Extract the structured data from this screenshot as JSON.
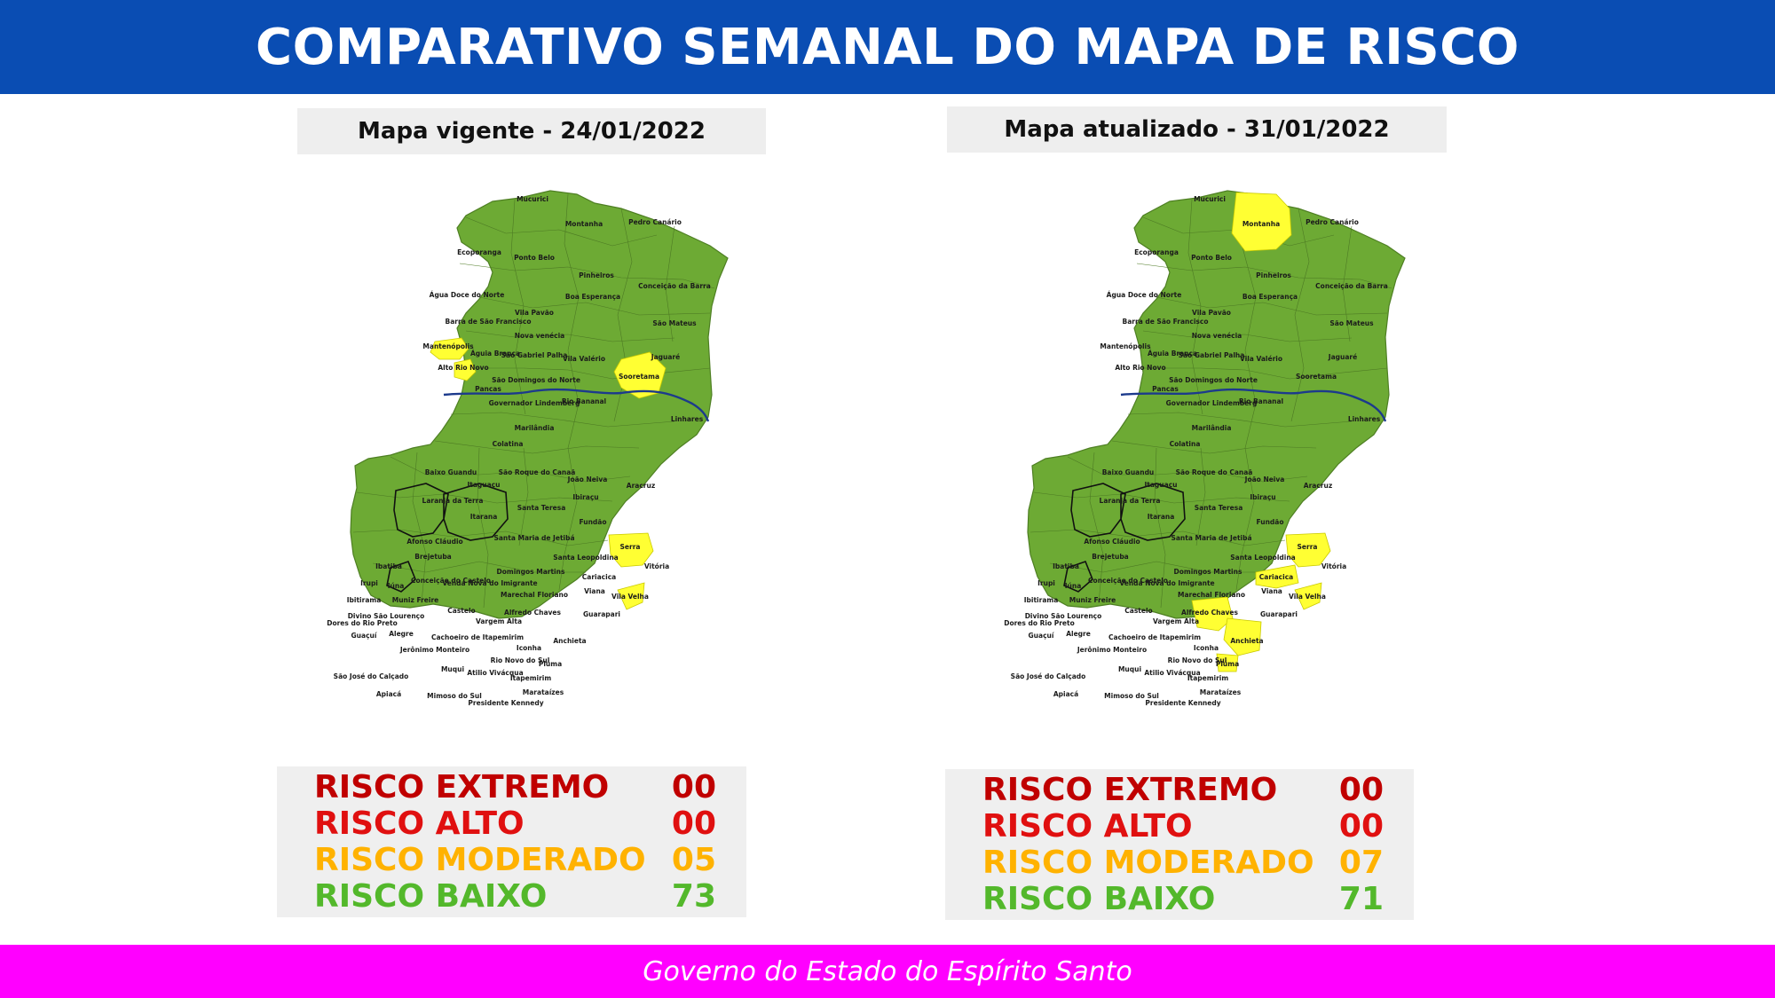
{
  "header": {
    "title": "COMPARATIVO SEMANAL DO MAPA DE RISCO"
  },
  "maps": [
    {
      "caption": "Mapa vigente - 24/01/2022",
      "highlighted_municipalities": [
        "Mantenópolis",
        "Alto Rio Novo",
        "Sooretama",
        "Serra",
        "Vila Velha"
      ],
      "legend": [
        {
          "label": "RISCO EXTREMO",
          "value": "00",
          "color": "#c00000"
        },
        {
          "label": "RISCO ALTO",
          "value": "00",
          "color": "#e01010"
        },
        {
          "label": "RISCO MODERADO",
          "value": "05",
          "color": "#ffb200"
        },
        {
          "label": "RISCO BAIXO",
          "value": "73",
          "color": "#53b82b"
        }
      ]
    },
    {
      "caption": "Mapa atualizado - 31/01/2022",
      "highlighted_municipalities": [
        "Montanha",
        "Serra",
        "Cariacica",
        "Vila Velha",
        "Alfredo Chaves",
        "Anchieta",
        "Piúma"
      ],
      "legend": [
        {
          "label": "RISCO EXTREMO",
          "value": "00",
          "color": "#c00000"
        },
        {
          "label": "RISCO ALTO",
          "value": "00",
          "color": "#e01010"
        },
        {
          "label": "RISCO MODERADO",
          "value": "07",
          "color": "#ffb200"
        },
        {
          "label": "RISCO BAIXO",
          "value": "71",
          "color": "#53b82b"
        }
      ]
    }
  ],
  "municipalities": [
    "Mucurici",
    "Montanha",
    "Pedro Canário",
    "Ecoporanga",
    "Ponto Belo",
    "Pinheiros",
    "Conceição da Barra",
    "Água Doce do Norte",
    "Boa Esperança",
    "Vila Pavão",
    "Barra de São Francisco",
    "São Mateus",
    "Nova venécia",
    "Mantenópolis",
    "Águia Branca",
    "São Gabriel Palha",
    "Vila Valério",
    "Jaguaré",
    "Alto Rio Novo",
    "Sooretama",
    "São Domingos do Norte",
    "Pancas",
    "Governador Lindemberg",
    "Rio Bananal",
    "Linhares",
    "Marilândia",
    "Colatina",
    "Baixo Guandu",
    "São Roque do Canaã",
    "João Neiva",
    "Itaguaçu",
    "Aracruz",
    "Ibiraçu",
    "Laranja da Terra",
    "Santa Teresa",
    "Itarana",
    "Fundão",
    "Afonso Cláudio",
    "Santa Maria de Jetibá",
    "Serra",
    "Brejetuba",
    "Santa Leopoldina",
    "Vitória",
    "Ibatiba",
    "Domingos Martins",
    "Conceição do Castelo",
    "Venda Nova do Imigrante",
    "Cariacica",
    "Irupi",
    "Iúna",
    "Viana",
    "Vila Velha",
    "Ibitirama",
    "Muniz Freire",
    "Marechal Floriano",
    "Divino São Lourenço",
    "Dores do Rio Preto",
    "Castelo",
    "Alfredo Chaves",
    "Guarapari",
    "Vargem Alta",
    "Guaçuí",
    "Alegre",
    "Cachoeiro de Itapemirim",
    "Jerônimo Monteiro",
    "Anchieta",
    "Iconha",
    "Rio Novo do Sul",
    "Piúma",
    "Muqui",
    "Atilio Vivácqua",
    "Itapemirim",
    "São José do Calçado",
    "Apiacá",
    "Mimoso do Sul",
    "Presidente Kennedy",
    "Marataízes"
  ],
  "colors": {
    "low_risk": "#6daa34",
    "moderate_risk": "#ffff33",
    "river": "#1c3a8c",
    "header": "#0a4db3",
    "footer": "#ff00ff"
  },
  "footer": {
    "text": "Governo do Estado do Espírito Santo"
  }
}
